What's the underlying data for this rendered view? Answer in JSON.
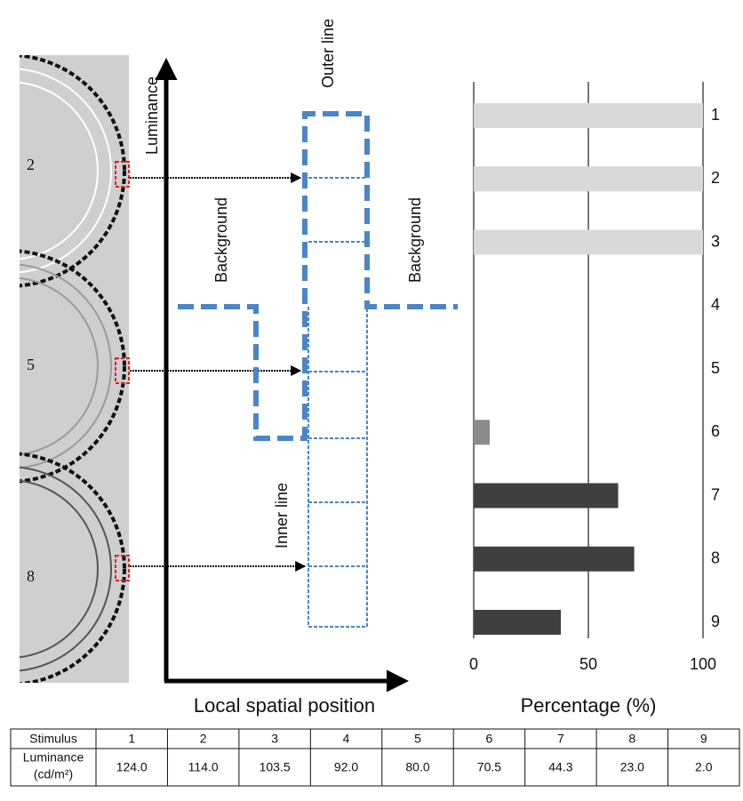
{
  "chart_data": {
    "type": "bar",
    "orientation": "horizontal",
    "categories": [
      "1",
      "2",
      "3",
      "4",
      "5",
      "6",
      "7",
      "8",
      "9"
    ],
    "values": [
      100,
      100,
      100,
      0,
      0,
      7,
      63,
      70,
      38
    ],
    "colors": [
      "#d9d9d9",
      "#d9d9d9",
      "#d9d9d9",
      "#8c8c8c",
      "#8c8c8c",
      "#8c8c8c",
      "#3f3f3f",
      "#3f3f3f",
      "#3f3f3f"
    ],
    "xlim": [
      0,
      100
    ],
    "xticks": [
      0,
      50,
      100
    ],
    "grid": true,
    "xlabel": "Percentage (%)"
  },
  "diagram": {
    "y_axis_label": "Luminance",
    "x_axis_label": "Local spatial position",
    "labels": [
      "Outer line",
      "Background",
      "Background",
      "Inner line"
    ],
    "stimuli": [
      "2",
      "5",
      "8"
    ]
  },
  "table": {
    "header": [
      "Stimulus",
      "1",
      "2",
      "3",
      "4",
      "5",
      "6",
      "7",
      "8",
      "9"
    ],
    "row_label": [
      "Luminance",
      "(cd/m²)"
    ],
    "row": [
      "124.0",
      "114.0",
      "103.5",
      "92.0",
      "80.0",
      "70.5",
      "44.3",
      "23.0",
      "2.0"
    ]
  }
}
